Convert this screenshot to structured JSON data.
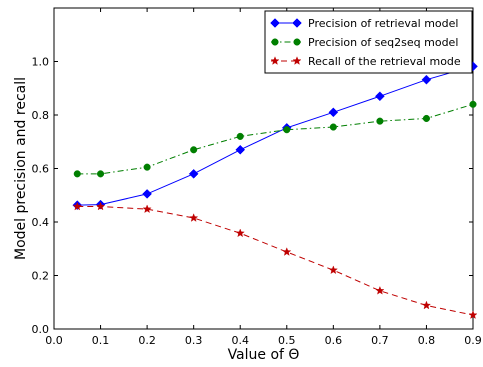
{
  "chart_data": {
    "type": "line",
    "title": "",
    "xlabel": "Value of Θ",
    "ylabel": "Model precision and recall",
    "xlim": [
      0.0,
      0.9
    ],
    "ylim": [
      0.0,
      1.2
    ],
    "x_ticks": [
      "0.0",
      "0.1",
      "0.2",
      "0.3",
      "0.4",
      "0.5",
      "0.6",
      "0.7",
      "0.8",
      "0.9"
    ],
    "y_ticks": [
      "0.0",
      "0.2",
      "0.4",
      "0.6",
      "0.8",
      "1.0"
    ],
    "grid": false,
    "legend_position": "top-right",
    "x": [
      0.05,
      0.1,
      0.2,
      0.3,
      0.4,
      0.5,
      0.6,
      0.7,
      0.8,
      0.9
    ],
    "series": [
      {
        "name": "Precision of retrieval model",
        "values": [
          0.463,
          0.465,
          0.505,
          0.58,
          0.67,
          0.752,
          0.81,
          0.87,
          0.932,
          0.982
        ],
        "color": "#0000ff",
        "line_style": "solid",
        "marker": "diamond"
      },
      {
        "name": "Precision of seq2seq model",
        "values": [
          0.58,
          0.58,
          0.605,
          0.67,
          0.72,
          0.745,
          0.755,
          0.777,
          0.787,
          0.84
        ],
        "color": "#007f00",
        "line_style": "dash-dot",
        "marker": "circle"
      },
      {
        "name": "Recall of the retrieval mode",
        "values": [
          0.458,
          0.458,
          0.448,
          0.415,
          0.358,
          0.288,
          0.22,
          0.143,
          0.088,
          0.052
        ],
        "color": "#bf0000",
        "line_style": "dashed",
        "marker": "star"
      }
    ]
  }
}
